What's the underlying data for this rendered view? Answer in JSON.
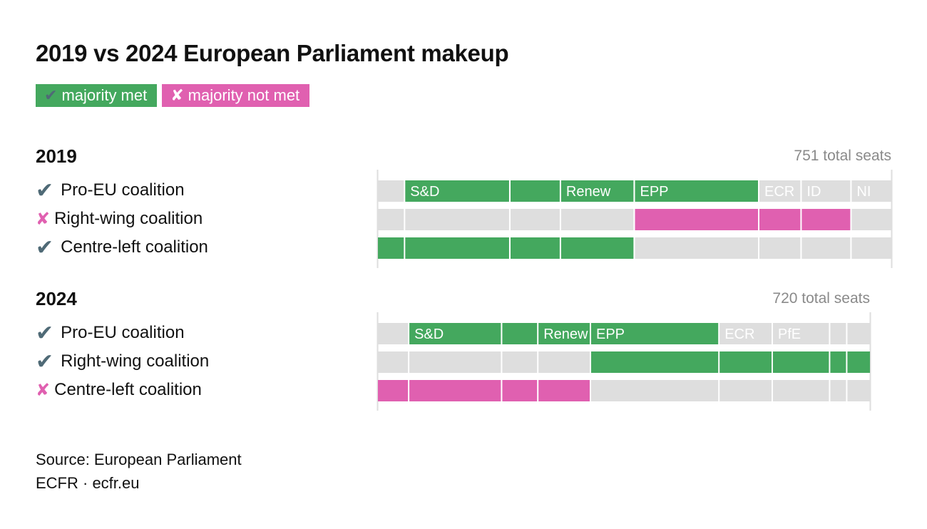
{
  "title": "2019 vs 2024 European Parliament makeup",
  "legend": {
    "met": {
      "symbol": "✔",
      "label": "majority met"
    },
    "not_met": {
      "symbol": "✘",
      "label": "majority not met"
    }
  },
  "colors": {
    "met": "#44a85e",
    "not_met": "#e060b0",
    "empty": "#dedede",
    "axis": "#dedede",
    "check_icon": "#4f6a76"
  },
  "chart_data": [
    {
      "type": "bar",
      "year": "2019",
      "total_label": "751 total seats",
      "total": 751,
      "parties": [
        {
          "label": "",
          "seats": 40
        },
        {
          "label": "S&D",
          "seats": 154
        },
        {
          "label": "",
          "seats": 74
        },
        {
          "label": "Renew",
          "seats": 108
        },
        {
          "label": "EPP",
          "seats": 182
        },
        {
          "label": "ECR",
          "seats": 62
        },
        {
          "label": "ID",
          "seats": 73
        },
        {
          "label": "NI",
          "seats": 58
        }
      ],
      "coalitions": [
        {
          "name": "Pro-EU coalition",
          "met": true,
          "members": [
            1,
            2,
            3,
            4
          ]
        },
        {
          "name": "Right-wing coalition",
          "met": false,
          "members": [
            4,
            5,
            6
          ]
        },
        {
          "name": "Centre-left coalition",
          "met": true,
          "members": [
            0,
            1,
            2,
            3
          ]
        }
      ]
    },
    {
      "type": "bar",
      "year": "2024",
      "total_label": "720 total seats",
      "total": 720,
      "parties": [
        {
          "label": "",
          "seats": 46
        },
        {
          "label": "S&D",
          "seats": 136
        },
        {
          "label": "",
          "seats": 53
        },
        {
          "label": "Renew",
          "seats": 77
        },
        {
          "label": "EPP",
          "seats": 188
        },
        {
          "label": "ECR",
          "seats": 78
        },
        {
          "label": "PfE",
          "seats": 84
        },
        {
          "label": "",
          "seats": 25
        },
        {
          "label": "",
          "seats": 33
        }
      ],
      "coalitions": [
        {
          "name": "Pro-EU coalition",
          "met": true,
          "members": [
            1,
            2,
            3,
            4
          ]
        },
        {
          "name": "Right-wing coalition",
          "met": true,
          "members": [
            4,
            5,
            6,
            7,
            8
          ]
        },
        {
          "name": "Centre-left coalition",
          "met": false,
          "members": [
            0,
            1,
            2,
            3
          ]
        }
      ]
    }
  ],
  "source": {
    "line1": "Source: European Parliament",
    "line2": "ECFR · ecfr.eu"
  }
}
